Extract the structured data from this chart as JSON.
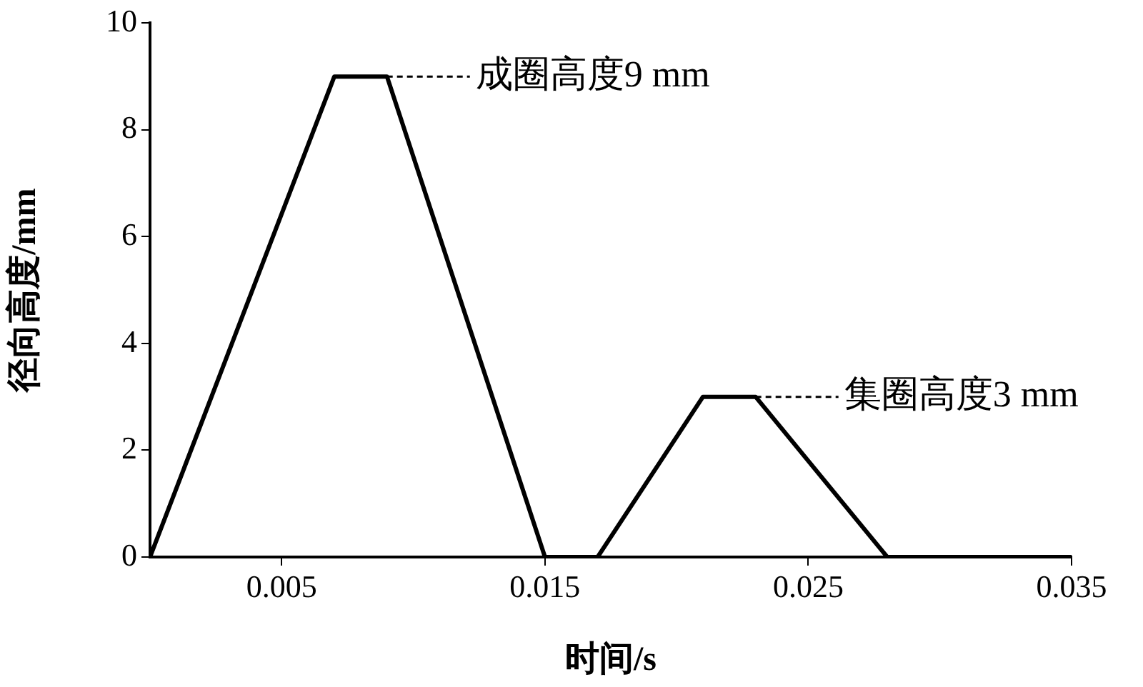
{
  "chart_data": {
    "type": "line",
    "xlabel": "时间/s",
    "ylabel": "径向高度/mm",
    "x": [
      0,
      0.007,
      0.009,
      0.015,
      0.017,
      0.021,
      0.023,
      0.028,
      0.035
    ],
    "series": [
      {
        "color": "#000000",
        "values": [
          0,
          9,
          9,
          0,
          0,
          3,
          3,
          0,
          0
        ]
      }
    ],
    "xlim": [
      0,
      0.035
    ],
    "xticks": [
      0.005,
      0.015,
      0.025,
      0.035
    ],
    "ylim": [
      0,
      10
    ],
    "yticks": [
      0,
      2,
      4,
      6,
      8,
      10
    ],
    "grid": false,
    "legend": false,
    "marker": "none",
    "line_style": "solid",
    "annotations": [
      {
        "text": "成圈高度9 mm",
        "x": 0.009,
        "y": 9
      },
      {
        "text": "集圈高度3 mm",
        "x": 0.023,
        "y": 3
      }
    ]
  }
}
